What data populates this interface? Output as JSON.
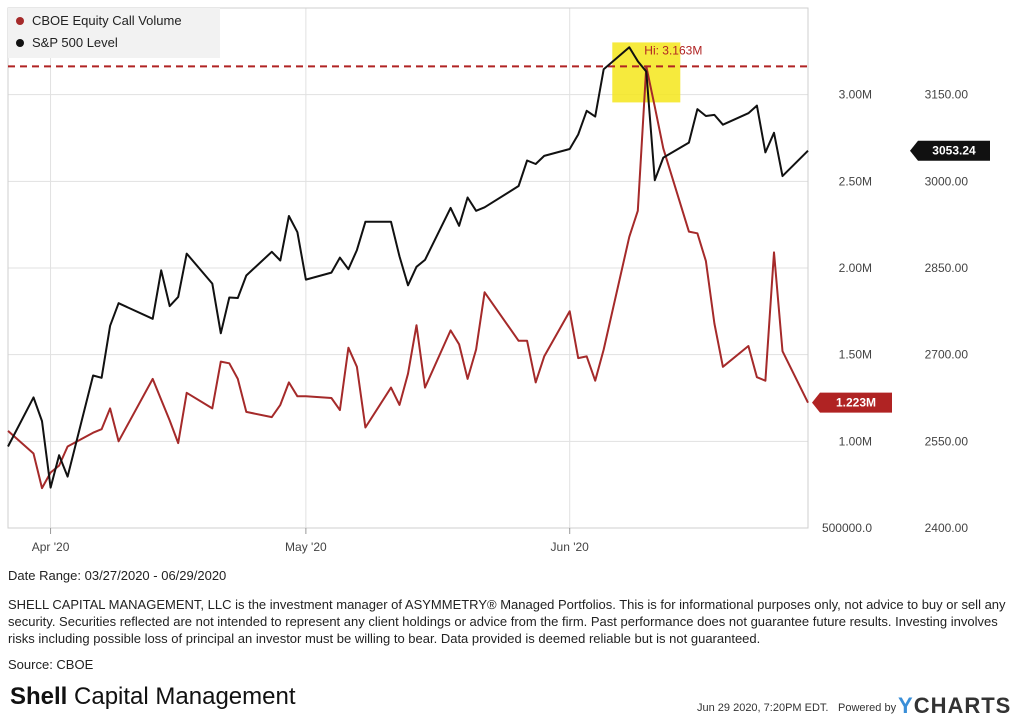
{
  "chart_data": {
    "type": "line",
    "legend": [
      {
        "label": "CBOE Equity Call Volume",
        "color": "#a52a2a"
      },
      {
        "label": "S&P 500 Level",
        "color": "#111111"
      }
    ],
    "legend_position": "top-left",
    "x_ticks": [
      {
        "date": "2020-04-01",
        "label": "Apr '20"
      },
      {
        "date": "2020-05-01",
        "label": "May '20"
      },
      {
        "date": "2020-06-01",
        "label": "Jun '20"
      }
    ],
    "x_range": [
      "2020-03-27",
      "2020-06-29"
    ],
    "left_axis": {
      "series": "CBOE Equity Call Volume",
      "range": [
        500000,
        3500000
      ],
      "ticks": [
        {
          "v": 500000,
          "label": "500000.0"
        },
        {
          "v": 1000000,
          "label": "1.00M"
        },
        {
          "v": 1500000,
          "label": "1.50M"
        },
        {
          "v": 2000000,
          "label": "2.00M"
        },
        {
          "v": 2500000,
          "label": "2.50M"
        },
        {
          "v": 3000000,
          "label": "3.00M"
        }
      ]
    },
    "right_axis": {
      "series": "S&P 500 Level",
      "range": [
        2400,
        3300
      ],
      "ticks": [
        {
          "v": 2400,
          "label": "2400.00"
        },
        {
          "v": 2550,
          "label": "2550.00"
        },
        {
          "v": 2700,
          "label": "2700.00"
        },
        {
          "v": 2850,
          "label": "2850.00"
        },
        {
          "v": 3000,
          "label": "3000.00"
        },
        {
          "v": 3150,
          "label": "3150.00"
        }
      ]
    },
    "grid": true,
    "annotations": [
      {
        "text": "Hi: 3.163M",
        "value": 3163000,
        "style": "dashed horizontal line, highlighted peak",
        "color": "#b02323"
      }
    ],
    "end_labels": [
      {
        "series": "S&P 500 Level",
        "text": "3053.24",
        "color": "#111111"
      },
      {
        "series": "CBOE Equity Call Volume",
        "text": "1.223M",
        "color": "#b02323"
      }
    ],
    "series": [
      {
        "name": "CBOE Equity Call Volume",
        "color": "#a52a2a",
        "axis": "left",
        "points": [
          [
            "2020-03-27",
            1.06
          ],
          [
            "2020-03-30",
            0.93
          ],
          [
            "2020-03-31",
            0.73
          ],
          [
            "2020-04-01",
            0.82
          ],
          [
            "2020-04-02",
            0.86
          ],
          [
            "2020-04-03",
            0.97
          ],
          [
            "2020-04-06",
            1.05
          ],
          [
            "2020-04-07",
            1.07
          ],
          [
            "2020-04-08",
            1.19
          ],
          [
            "2020-04-09",
            1.0
          ],
          [
            "2020-04-13",
            1.36
          ],
          [
            "2020-04-14",
            1.24
          ],
          [
            "2020-04-15",
            1.12
          ],
          [
            "2020-04-16",
            0.99
          ],
          [
            "2020-04-17",
            1.28
          ],
          [
            "2020-04-20",
            1.19
          ],
          [
            "2020-04-21",
            1.46
          ],
          [
            "2020-04-22",
            1.45
          ],
          [
            "2020-04-23",
            1.36
          ],
          [
            "2020-04-24",
            1.17
          ],
          [
            "2020-04-27",
            1.14
          ],
          [
            "2020-04-28",
            1.21
          ],
          [
            "2020-04-29",
            1.34
          ],
          [
            "2020-04-30",
            1.26
          ],
          [
            "2020-05-01",
            1.26
          ],
          [
            "2020-05-04",
            1.25
          ],
          [
            "2020-05-05",
            1.18
          ],
          [
            "2020-05-06",
            1.54
          ],
          [
            "2020-05-07",
            1.43
          ],
          [
            "2020-05-08",
            1.08
          ],
          [
            "2020-05-11",
            1.31
          ],
          [
            "2020-05-12",
            1.21
          ],
          [
            "2020-05-13",
            1.39
          ],
          [
            "2020-05-14",
            1.67
          ],
          [
            "2020-05-15",
            1.31
          ],
          [
            "2020-05-18",
            1.64
          ],
          [
            "2020-05-19",
            1.56
          ],
          [
            "2020-05-20",
            1.36
          ],
          [
            "2020-05-21",
            1.53
          ],
          [
            "2020-05-22",
            1.86
          ],
          [
            "2020-05-26",
            1.58
          ],
          [
            "2020-05-27",
            1.58
          ],
          [
            "2020-05-28",
            1.34
          ],
          [
            "2020-05-29",
            1.49
          ],
          [
            "2020-06-01",
            1.75
          ],
          [
            "2020-06-02",
            1.48
          ],
          [
            "2020-06-03",
            1.49
          ],
          [
            "2020-06-04",
            1.35
          ],
          [
            "2020-06-05",
            1.53
          ],
          [
            "2020-06-08",
            2.18
          ],
          [
            "2020-06-09",
            2.33
          ],
          [
            "2020-06-10",
            3.163
          ],
          [
            "2020-06-11",
            2.93
          ],
          [
            "2020-06-12",
            2.69
          ],
          [
            "2020-06-15",
            2.21
          ],
          [
            "2020-06-16",
            2.2
          ],
          [
            "2020-06-17",
            2.04
          ],
          [
            "2020-06-18",
            1.68
          ],
          [
            "2020-06-19",
            1.43
          ],
          [
            "2020-06-22",
            1.55
          ],
          [
            "2020-06-23",
            1.37
          ],
          [
            "2020-06-24",
            1.35
          ],
          [
            "2020-06-25",
            2.09
          ],
          [
            "2020-06-26",
            1.52
          ],
          [
            "2020-06-29",
            1.223
          ]
        ]
      },
      {
        "name": "S&P 500 Level",
        "color": "#111111",
        "axis": "right",
        "points": [
          [
            "2020-03-27",
            2541
          ],
          [
            "2020-03-30",
            2626
          ],
          [
            "2020-03-31",
            2585
          ],
          [
            "2020-04-01",
            2470
          ],
          [
            "2020-04-02",
            2526
          ],
          [
            "2020-04-03",
            2489
          ],
          [
            "2020-04-06",
            2664
          ],
          [
            "2020-04-07",
            2660
          ],
          [
            "2020-04-08",
            2750
          ],
          [
            "2020-04-09",
            2789
          ],
          [
            "2020-04-13",
            2762
          ],
          [
            "2020-04-14",
            2846
          ],
          [
            "2020-04-15",
            2784
          ],
          [
            "2020-04-16",
            2800
          ],
          [
            "2020-04-17",
            2875
          ],
          [
            "2020-04-20",
            2823
          ],
          [
            "2020-04-21",
            2737
          ],
          [
            "2020-04-22",
            2799
          ],
          [
            "2020-04-23",
            2798
          ],
          [
            "2020-04-24",
            2837
          ],
          [
            "2020-04-27",
            2878
          ],
          [
            "2020-04-28",
            2863
          ],
          [
            "2020-04-29",
            2940
          ],
          [
            "2020-04-30",
            2912
          ],
          [
            "2020-05-01",
            2830
          ],
          [
            "2020-05-04",
            2842
          ],
          [
            "2020-05-05",
            2868
          ],
          [
            "2020-05-06",
            2848
          ],
          [
            "2020-05-07",
            2881
          ],
          [
            "2020-05-08",
            2930
          ],
          [
            "2020-05-11",
            2930
          ],
          [
            "2020-05-12",
            2870
          ],
          [
            "2020-05-13",
            2820
          ],
          [
            "2020-05-14",
            2852
          ],
          [
            "2020-05-15",
            2864
          ],
          [
            "2020-05-18",
            2954
          ],
          [
            "2020-05-19",
            2923
          ],
          [
            "2020-05-20",
            2972
          ],
          [
            "2020-05-21",
            2949
          ],
          [
            "2020-05-22",
            2955
          ],
          [
            "2020-05-26",
            2992
          ],
          [
            "2020-05-27",
            3036
          ],
          [
            "2020-05-28",
            3030
          ],
          [
            "2020-05-29",
            3044
          ],
          [
            "2020-06-01",
            3056
          ],
          [
            "2020-06-02",
            3081
          ],
          [
            "2020-06-03",
            3122
          ],
          [
            "2020-06-04",
            3112
          ],
          [
            "2020-06-05",
            3194
          ],
          [
            "2020-06-08",
            3232
          ],
          [
            "2020-06-09",
            3208
          ],
          [
            "2020-06-10",
            3190
          ],
          [
            "2020-06-11",
            3002
          ],
          [
            "2020-06-12",
            3041
          ],
          [
            "2020-06-15",
            3067
          ],
          [
            "2020-06-16",
            3125
          ],
          [
            "2020-06-17",
            3113
          ],
          [
            "2020-06-18",
            3115
          ],
          [
            "2020-06-19",
            3098
          ],
          [
            "2020-06-22",
            3118
          ],
          [
            "2020-06-23",
            3131
          ],
          [
            "2020-06-24",
            3050
          ],
          [
            "2020-06-25",
            3084
          ],
          [
            "2020-06-26",
            3009
          ],
          [
            "2020-06-29",
            3053
          ]
        ]
      }
    ]
  },
  "footer": {
    "date_range": "Date Range: 03/27/2020 - 06/29/2020",
    "disclaimer": "SHELL CAPITAL MANAGEMENT, LLC is the investment manager of ASYMMETRY® Managed Portfolios. This is for informational purposes only, not advice to buy or sell any security. Securities reflected are not intended to represent any client holdings or advice from the firm. Past performance does not guarantee future results. Investing involves risks including possible loss of principal an investor must be willing to bear. Data provided is deemed reliable but is not guaranteed.",
    "source": "Source: CBOE",
    "brand_bold": "Shell",
    "brand_rest": " Capital Management",
    "timestamp": "Jun 29 2020, 7:20PM EDT.",
    "powered_by": "Powered by",
    "ycharts_y": "Y",
    "ycharts_rest": "CHARTS"
  }
}
